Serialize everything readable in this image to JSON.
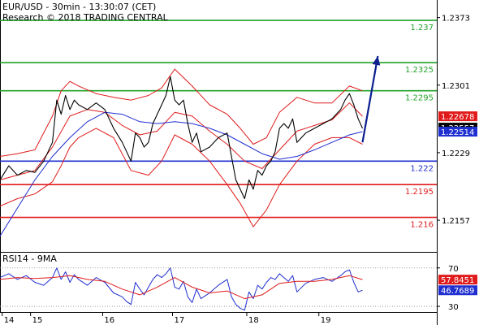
{
  "header": {
    "line1": "EUR/USD - 30min - 13:30:07 (CET)",
    "line2": "Research © 2018 TRADING CENTRAL"
  },
  "chart_data": {
    "type": "line",
    "price_axis": {
      "ylim": [
        2125,
        2390
      ],
      "ticks": [
        {
          "v": 2373,
          "label": "1.2373"
        },
        {
          "v": 2301,
          "label": "1.2301"
        },
        {
          "v": 2229,
          "label": "1.2229"
        },
        {
          "v": 2157,
          "label": "1.2157"
        }
      ]
    },
    "levels": [
      {
        "v": 2370,
        "label": "1.237",
        "color": "#22a32a"
      },
      {
        "v": 2325,
        "label": "1.2325",
        "color": "#22a32a"
      },
      {
        "v": 2295,
        "label": "1.2295",
        "color": "#22a32a"
      },
      {
        "v": 2220,
        "label": "1.222",
        "color": "#1f2fd0"
      },
      {
        "v": 2195,
        "label": "1.2195",
        "color": "#e01b1b"
      },
      {
        "v": 2160,
        "label": "1.216",
        "color": "#e01b1b"
      }
    ],
    "tags": [
      {
        "v": 2267.8,
        "label": "1.22678",
        "color": "#e01b1b"
      },
      {
        "v": 2255.7,
        "label": "1.22557",
        "color": "#000000"
      },
      {
        "v": 2251.4,
        "label": "1.22514",
        "color": "#1f2fd0"
      }
    ],
    "x_axis": {
      "xlim": [
        0,
        100
      ],
      "ticks": [
        {
          "x": 0.5,
          "label": "14"
        },
        {
          "x": 7.0,
          "label": "15"
        },
        {
          "x": 23.5,
          "label": "16"
        },
        {
          "x": 39.5,
          "label": "17"
        },
        {
          "x": 56.5,
          "label": "18"
        },
        {
          "x": 73.0,
          "label": "19"
        }
      ]
    },
    "series": [
      {
        "role": "price",
        "color": "#000000",
        "x": [
          0,
          2,
          4,
          6,
          8,
          10,
          12,
          13,
          14,
          15,
          16,
          17,
          18,
          20,
          22,
          24,
          26,
          28,
          29,
          30,
          31,
          32,
          33,
          34,
          35,
          36,
          37,
          38,
          39,
          40,
          41,
          42,
          43,
          44,
          45,
          46,
          48,
          50,
          52,
          53,
          54,
          55,
          56,
          57,
          58,
          59,
          60,
          61,
          62,
          63,
          64,
          65,
          66,
          67,
          68,
          70,
          72,
          74,
          76,
          78,
          79,
          80,
          81,
          82,
          83
        ],
        "values": [
          2200,
          2215,
          2205,
          2210,
          2208,
          2220,
          2240,
          2285,
          2270,
          2290,
          2275,
          2285,
          2280,
          2275,
          2282,
          2275,
          2255,
          2240,
          2230,
          2220,
          2250,
          2245,
          2235,
          2240,
          2260,
          2270,
          2280,
          2290,
          2310,
          2285,
          2280,
          2285,
          2260,
          2240,
          2250,
          2230,
          2235,
          2245,
          2250,
          2225,
          2200,
          2190,
          2180,
          2200,
          2190,
          2210,
          2205,
          2215,
          2220,
          2230,
          2255,
          2260,
          2255,
          2265,
          2240,
          2250,
          2255,
          2260,
          2265,
          2275,
          2285,
          2292,
          2280,
          2265,
          2255
        ]
      },
      {
        "role": "moving-average-fast",
        "color": "#e01b1b",
        "x": [
          0,
          4,
          8,
          12,
          16,
          20,
          24,
          28,
          32,
          36,
          40,
          44,
          48,
          52,
          56,
          60,
          64,
          68,
          72,
          76,
          80,
          83
        ],
        "values": [
          2200,
          2205,
          2210,
          2235,
          2268,
          2275,
          2272,
          2258,
          2248,
          2252,
          2272,
          2268,
          2252,
          2238,
          2220,
          2212,
          2232,
          2252,
          2258,
          2264,
          2282,
          2267.8
        ]
      },
      {
        "role": "moving-average-slow",
        "color": "#1f2fd0",
        "x": [
          0,
          4,
          8,
          12,
          16,
          20,
          24,
          28,
          32,
          36,
          40,
          44,
          48,
          52,
          56,
          60,
          64,
          68,
          72,
          76,
          80,
          83
        ],
        "values": [
          2140,
          2170,
          2200,
          2225,
          2245,
          2262,
          2272,
          2270,
          2262,
          2260,
          2262,
          2260,
          2255,
          2248,
          2238,
          2228,
          2222,
          2225,
          2232,
          2240,
          2248,
          2251.4
        ]
      },
      {
        "role": "bollinger-upper",
        "color": "#e01b1b",
        "x": [
          0,
          4,
          8,
          12,
          14,
          16,
          18,
          22,
          26,
          30,
          34,
          37,
          40,
          44,
          48,
          52,
          55,
          58,
          61,
          64,
          68,
          72,
          76,
          80,
          83
        ],
        "values": [
          2225,
          2228,
          2232,
          2268,
          2295,
          2305,
          2300,
          2292,
          2288,
          2285,
          2290,
          2298,
          2318,
          2300,
          2280,
          2270,
          2255,
          2238,
          2245,
          2272,
          2288,
          2282,
          2282,
          2300,
          2295
        ]
      },
      {
        "role": "bollinger-lower",
        "color": "#e01b1b",
        "x": [
          0,
          4,
          8,
          12,
          14,
          16,
          18,
          22,
          26,
          30,
          34,
          37,
          40,
          44,
          48,
          52,
          55,
          58,
          61,
          64,
          68,
          72,
          76,
          80,
          83
        ],
        "values": [
          2172,
          2180,
          2185,
          2198,
          2215,
          2235,
          2245,
          2255,
          2245,
          2210,
          2205,
          2220,
          2248,
          2238,
          2220,
          2195,
          2175,
          2150,
          2168,
          2195,
          2220,
          2238,
          2245,
          2245,
          2238
        ]
      },
      {
        "role": "forecast-arrow",
        "color": "#0b1f8f",
        "x": [
          83,
          86.5
        ],
        "values": [
          2240,
          2332
        ]
      }
    ],
    "rsi": {
      "label": "RSI14 - 9MA",
      "ylim": [
        25,
        85
      ],
      "ticks": [
        {
          "v": 70,
          "label": "70"
        },
        {
          "v": 30,
          "label": "30"
        }
      ],
      "tags": [
        {
          "v": 57.8451,
          "label": "57.8451",
          "color": "#e01b1b"
        },
        {
          "v": 46.7689,
          "label": "46.7689",
          "color": "#1f2fd0"
        }
      ],
      "series": [
        {
          "role": "rsi",
          "color": "#1f2fd0",
          "x": [
            0,
            2,
            4,
            6,
            8,
            10,
            12,
            13,
            14,
            15,
            16,
            17,
            18,
            20,
            22,
            24,
            26,
            28,
            29,
            30,
            31,
            32,
            33,
            34,
            35,
            36,
            37,
            38,
            39,
            40,
            41,
            42,
            43,
            44,
            45,
            46,
            48,
            50,
            52,
            53,
            54,
            55,
            56,
            57,
            58,
            59,
            60,
            61,
            62,
            63,
            64,
            65,
            66,
            67,
            68,
            70,
            72,
            74,
            76,
            78,
            79,
            80,
            81,
            82,
            83
          ],
          "values": [
            60,
            64,
            58,
            62,
            55,
            52,
            60,
            70,
            58,
            66,
            55,
            63,
            58,
            52,
            60,
            55,
            44,
            40,
            35,
            32,
            55,
            48,
            42,
            50,
            58,
            63,
            60,
            64,
            70,
            50,
            48,
            56,
            40,
            34,
            48,
            38,
            44,
            52,
            58,
            40,
            32,
            28,
            26,
            45,
            38,
            52,
            48,
            55,
            60,
            58,
            64,
            60,
            56,
            62,
            45,
            54,
            58,
            60,
            56,
            62,
            66,
            68,
            55,
            45,
            46.7689
          ]
        },
        {
          "role": "rsi-ma",
          "color": "#e01b1b",
          "x": [
            0,
            4,
            8,
            12,
            16,
            20,
            24,
            28,
            32,
            36,
            40,
            44,
            48,
            52,
            56,
            60,
            64,
            68,
            72,
            76,
            80,
            83
          ],
          "values": [
            58,
            60,
            59,
            60,
            62,
            58,
            56,
            48,
            42,
            50,
            60,
            50,
            44,
            46,
            38,
            42,
            54,
            56,
            56,
            58,
            62,
            57.8451
          ]
        }
      ]
    }
  }
}
